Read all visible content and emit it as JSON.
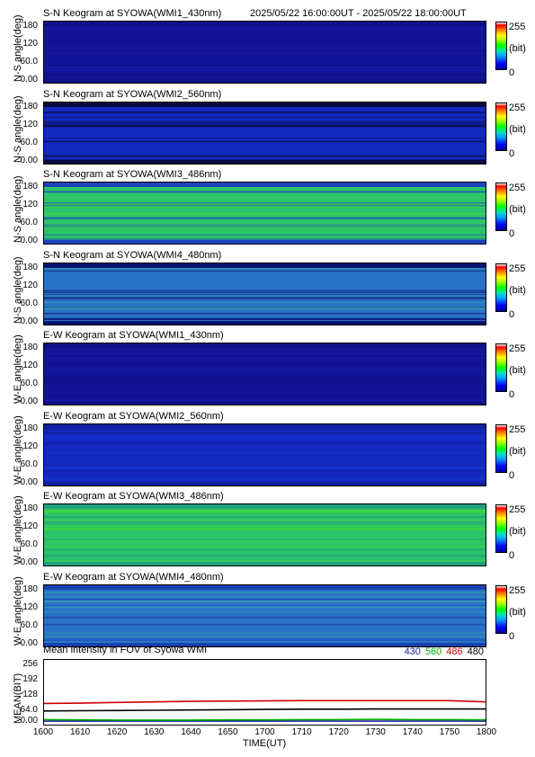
{
  "time_range": "2025/05/22 16:00:00UT - 2025/05/22 18:00:00UT",
  "keograms": [
    {
      "title": "S-N Keogram at SYOWA(WMI1_430nm)",
      "ylabel": "N-S angle(deg)",
      "base": "#14149a",
      "mid": "#1a1aa8",
      "edge": "#101088"
    },
    {
      "title": "S-N Keogram at SYOWA(WMI2_560nm)",
      "ylabel": "N-S angle(deg)",
      "base": "#1228c0",
      "mid": "#1634c8",
      "edge": "#0a0a40"
    },
    {
      "title": "S-N Keogram at SYOWA(WMI3_486nm)",
      "ylabel": "N-S angle(deg)",
      "base": "#2cc468",
      "mid": "#48d838",
      "edge": "#1c44c0"
    },
    {
      "title": "S-N Keogram at SYOWA(WMI4_480nm)",
      "ylabel": "N-S angle(deg)",
      "base": "#2a72c8",
      "mid": "#38a0b0",
      "edge": "#0a1470"
    },
    {
      "title": "E-W Keogram at SYOWA(WMI1_430nm)",
      "ylabel": "W-E angle(deg)",
      "base": "#14149a",
      "mid": "#1a1aa8",
      "edge": "#101088"
    },
    {
      "title": "E-W Keogram at SYOWA(WMI2_560nm)",
      "ylabel": "W-E angle(deg)",
      "base": "#1228c0",
      "mid": "#1634c8",
      "edge": "#1020a0"
    },
    {
      "title": "E-W Keogram at SYOWA(WMI3_486nm)",
      "ylabel": "W-E angle(deg)",
      "base": "#2cc468",
      "mid": "#48d838",
      "edge": "#20a080"
    },
    {
      "title": "E-W Keogram at SYOWA(WMI4_480nm)",
      "ylabel": "W-E angle(deg)",
      "base": "#2a72c8",
      "mid": "#38a0b0",
      "edge": "#1a40b0"
    }
  ],
  "y_ticks": [
    "180",
    "120",
    "60.0",
    "0.00"
  ],
  "colorbar": {
    "max": "255",
    "unit": "(bit)",
    "min": "0"
  },
  "mean": {
    "title": "Mean intensity in FOV of Syowa WMI",
    "ylabel": "MEAN(BIT)",
    "y_ticks": [
      "256",
      "192",
      "128",
      "64.0",
      "0.00"
    ],
    "legend": [
      {
        "label": "430",
        "color": "#2020a0"
      },
      {
        "label": "560",
        "color": "#00b000"
      },
      {
        "label": "486",
        "color": "#d00000"
      },
      {
        "label": "480",
        "color": "#000000"
      }
    ]
  },
  "x_ticks": [
    "1600",
    "1610",
    "1620",
    "1630",
    "1640",
    "1650",
    "1700",
    "1710",
    "1720",
    "1730",
    "1740",
    "1750",
    "1800"
  ],
  "x_label": "TIME(UT)",
  "chart_data": {
    "type": "line",
    "title": "Mean intensity in FOV of Syowa WMI",
    "xlabel": "TIME(UT)",
    "ylabel": "MEAN(BIT)",
    "x": [
      1600,
      1610,
      1620,
      1630,
      1640,
      1650,
      1700,
      1710,
      1720,
      1730,
      1740,
      1750,
      1800
    ],
    "ylim": [
      0,
      256
    ],
    "series": [
      {
        "name": "430",
        "values": [
          14,
          14,
          14,
          14,
          14,
          14,
          14,
          14,
          14,
          14,
          14,
          14,
          14
        ]
      },
      {
        "name": "560",
        "values": [
          20,
          19,
          18,
          18,
          18,
          19,
          19,
          20,
          20,
          21,
          20,
          20,
          19
        ]
      },
      {
        "name": "486",
        "values": [
          84,
          85,
          88,
          90,
          92,
          93,
          94,
          95,
          95,
          95,
          95,
          95,
          90
        ]
      },
      {
        "name": "480",
        "values": [
          54,
          55,
          56,
          57,
          58,
          59,
          60,
          61,
          61,
          62,
          62,
          62,
          62
        ]
      }
    ]
  }
}
